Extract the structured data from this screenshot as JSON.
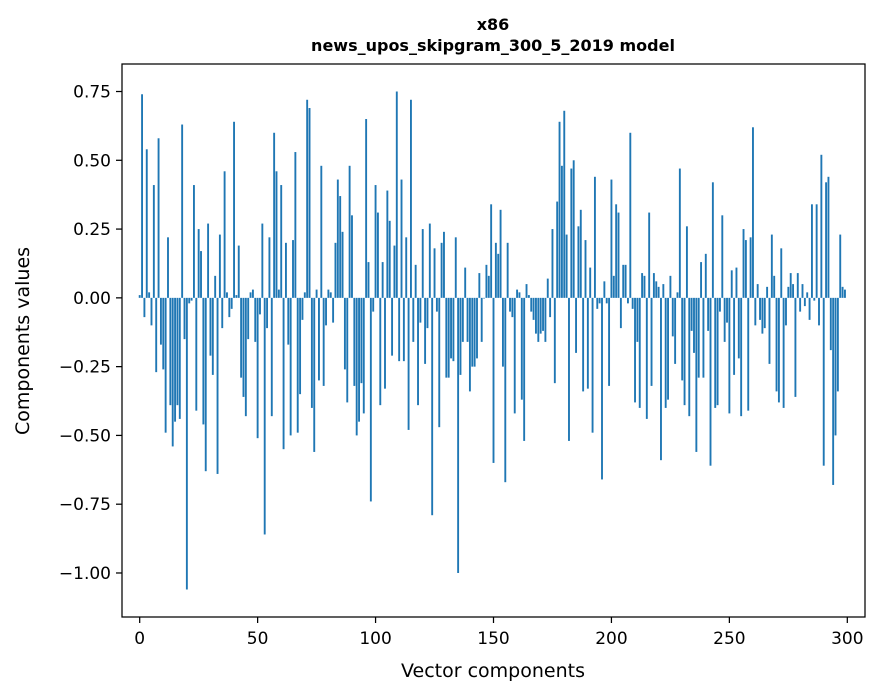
{
  "chart_data": {
    "type": "bar",
    "title": "x86",
    "subtitle": "news_upos_skipgram_300_5_2019 model",
    "xlabel": "Vector components",
    "ylabel": "Components values",
    "xlim": [
      -7.5,
      307.5
    ],
    "ylim": [
      -1.16,
      0.85
    ],
    "xticks": [
      0,
      50,
      100,
      150,
      200,
      250,
      300
    ],
    "yticks": [
      -1.0,
      -0.75,
      -0.5,
      -0.25,
      0.0,
      0.25,
      0.5,
      0.75
    ],
    "xtick_labels": [
      "0",
      "50",
      "100",
      "150",
      "200",
      "250",
      "300"
    ],
    "ytick_labels": [
      "−1.00",
      "−0.75",
      "−0.50",
      "−0.25",
      "0.00",
      "0.25",
      "0.50",
      "0.75"
    ],
    "bar_color": "#1f77b4",
    "grid": false,
    "series": [
      {
        "name": "components",
        "values": [
          0.01,
          0.74,
          -0.07,
          0.54,
          0.02,
          -0.1,
          0.41,
          -0.27,
          0.58,
          -0.17,
          -0.26,
          -0.49,
          0.22,
          -0.39,
          -0.54,
          -0.45,
          -0.39,
          -0.44,
          0.63,
          -0.15,
          -1.06,
          -0.02,
          -0.01,
          0.41,
          -0.41,
          0.25,
          0.17,
          -0.46,
          -0.63,
          0.27,
          -0.21,
          -0.28,
          0.08,
          -0.64,
          0.23,
          -0.11,
          0.46,
          0.02,
          -0.07,
          -0.04,
          0.64,
          0.01,
          0.19,
          -0.29,
          -0.36,
          -0.43,
          -0.15,
          0.02,
          0.03,
          -0.16,
          -0.51,
          -0.06,
          0.27,
          -0.86,
          -0.11,
          0.22,
          -0.43,
          0.6,
          0.46,
          0.03,
          0.41,
          -0.55,
          0.2,
          -0.17,
          -0.5,
          0.21,
          0.53,
          -0.49,
          -0.35,
          -0.08,
          0.02,
          0.72,
          0.69,
          -0.4,
          -0.56,
          0.03,
          -0.3,
          0.48,
          -0.32,
          -0.1,
          0.03,
          0.02,
          -0.09,
          0.2,
          0.43,
          0.37,
          0.24,
          -0.26,
          -0.38,
          0.48,
          0.3,
          -0.32,
          -0.5,
          -0.45,
          -0.31,
          -0.42,
          0.65,
          0.13,
          -0.74,
          -0.05,
          0.41,
          0.31,
          -0.39,
          0.13,
          -0.33,
          0.39,
          0.28,
          -0.21,
          0.19,
          0.75,
          -0.23,
          0.43,
          -0.23,
          0.22,
          -0.48,
          0.72,
          -0.16,
          0.12,
          -0.39,
          -0.09,
          0.25,
          -0.24,
          -0.11,
          0.27,
          -0.79,
          0.18,
          -0.05,
          -0.47,
          0.2,
          0.24,
          -0.29,
          -0.29,
          -0.22,
          -0.23,
          0.22,
          -1.0,
          -0.28,
          -0.16,
          0.11,
          -0.16,
          -0.34,
          -0.25,
          -0.25,
          -0.22,
          0.09,
          -0.16,
          0.0,
          0.12,
          0.08,
          0.34,
          -0.6,
          0.2,
          0.16,
          0.32,
          -0.25,
          -0.67,
          0.2,
          -0.05,
          -0.07,
          -0.42,
          0.03,
          0.02,
          -0.37,
          -0.52,
          0.05,
          0.01,
          -0.05,
          -0.08,
          -0.13,
          -0.16,
          -0.13,
          -0.12,
          -0.16,
          0.07,
          -0.07,
          0.25,
          -0.31,
          0.35,
          0.64,
          0.48,
          0.68,
          0.23,
          -0.52,
          0.47,
          0.5,
          -0.2,
          0.26,
          0.32,
          -0.34,
          0.21,
          -0.33,
          0.11,
          -0.49,
          0.44,
          -0.04,
          -0.02,
          -0.66,
          0.06,
          -0.02,
          -0.32,
          0.43,
          0.08,
          0.34,
          0.31,
          -0.11,
          0.12,
          0.12,
          -0.02,
          0.6,
          -0.04,
          -0.38,
          -0.16,
          -0.4,
          0.09,
          0.08,
          -0.44,
          0.31,
          -0.32,
          0.09,
          0.06,
          0.04,
          -0.59,
          0.05,
          -0.4,
          -0.37,
          0.08,
          -0.14,
          -0.24,
          0.02,
          0.47,
          -0.3,
          -0.39,
          0.26,
          -0.43,
          -0.12,
          -0.2,
          -0.56,
          -0.29,
          0.13,
          -0.29,
          0.16,
          -0.12,
          -0.61,
          0.42,
          -0.4,
          -0.39,
          -0.05,
          0.3,
          -0.16,
          -0.09,
          -0.42,
          0.1,
          -0.28,
          0.11,
          -0.22,
          -0.43,
          0.25,
          0.21,
          -0.41,
          0.22,
          0.62,
          -0.1,
          0.05,
          -0.08,
          -0.13,
          -0.11,
          0.04,
          -0.24,
          0.23,
          0.08,
          -0.34,
          -0.38,
          0.18,
          -0.4,
          -0.1,
          0.04,
          0.09,
          0.05,
          -0.36,
          0.09,
          -0.05,
          0.05,
          -0.03,
          0.02,
          -0.08,
          0.34,
          -0.01,
          0.34,
          -0.1,
          0.52,
          -0.61,
          0.42,
          0.44,
          -0.19,
          -0.68,
          -0.5,
          -0.34,
          0.23,
          0.04,
          0.03
        ]
      }
    ]
  }
}
